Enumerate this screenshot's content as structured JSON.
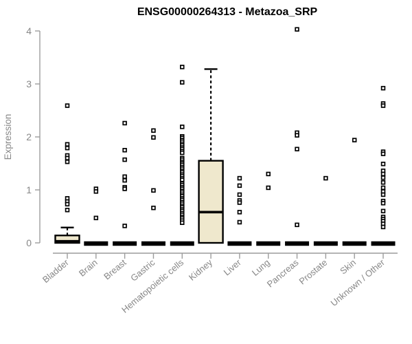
{
  "colors": {
    "box_fill": "#EFE8CD",
    "stroke": "#000000",
    "axis": "#9C9C9C",
    "tick_label": "#878787",
    "title": "#000000",
    "background": "#FFFFFF"
  },
  "chart_data": {
    "type": "boxplot",
    "title": "ENSG00000264313 - Metazoa_SRP",
    "ylabel": "Expression",
    "xlabel": "",
    "ylim": [
      0,
      4
    ],
    "yticks": [
      0,
      1,
      2,
      3,
      4
    ],
    "grid": false,
    "legend": false,
    "categories": [
      "Bladder",
      "Brain",
      "Breast",
      "Gastric",
      "Hematopoietic cells",
      "Kidney",
      "Liver",
      "Lung",
      "Pancreas",
      "Prostate",
      "Skin",
      "Unknown / Other"
    ],
    "boxes": [
      {
        "category": "Bladder",
        "q1": 0,
        "median": 0.03,
        "q3": 0.14,
        "whisker_low": 0,
        "whisker_high": 0.29,
        "outliers": [
          2.59,
          1.86,
          1.79,
          1.65,
          1.6,
          1.53,
          0.84,
          0.78,
          0.73,
          0.62
        ]
      },
      {
        "category": "Brain",
        "q1": 0,
        "median": 0,
        "q3": 0,
        "whisker_low": 0,
        "whisker_high": 0,
        "outliers": [
          1.02,
          0.97,
          0.47
        ]
      },
      {
        "category": "Breast",
        "q1": 0,
        "median": 0,
        "q3": 0,
        "whisker_low": 0,
        "whisker_high": 0,
        "outliers": [
          2.26,
          1.75,
          1.57,
          1.25,
          1.18,
          1.05,
          1.02,
          0.32
        ]
      },
      {
        "category": "Gastric",
        "q1": 0,
        "median": 0,
        "q3": 0,
        "whisker_low": 0,
        "whisker_high": 0,
        "outliers": [
          2.12,
          1.99,
          0.99,
          0.66
        ]
      },
      {
        "category": "Hematopoietic cells",
        "q1": 0,
        "median": 0,
        "q3": 0,
        "whisker_low": 0,
        "whisker_high": 0,
        "outliers": [
          3.32,
          3.03,
          2.19,
          2.01,
          1.98,
          1.94,
          1.91,
          1.87,
          1.84,
          1.8,
          1.77,
          1.73,
          1.7,
          1.6,
          1.57,
          1.53,
          1.5,
          1.47,
          1.43,
          1.4,
          1.36,
          1.33,
          1.29,
          1.26,
          1.22,
          1.19,
          1.12,
          1.09,
          1.05,
          1.02,
          0.98,
          0.95,
          0.91,
          0.88,
          0.84,
          0.81,
          0.77,
          0.74,
          0.7,
          0.67,
          0.63,
          0.6,
          0.56,
          0.53,
          0.49,
          0.46,
          0.42,
          0.38
        ]
      },
      {
        "category": "Kidney",
        "q1": 0,
        "median": 0.58,
        "q3": 1.55,
        "whisker_low": 0,
        "whisker_high": 3.28,
        "outliers": []
      },
      {
        "category": "Liver",
        "q1": 0,
        "median": 0,
        "q3": 0,
        "whisker_low": 0,
        "whisker_high": 0,
        "outliers": [
          1.22,
          1.08,
          0.91,
          0.8,
          0.76,
          0.58,
          0.39
        ]
      },
      {
        "category": "Lung",
        "q1": 0,
        "median": 0,
        "q3": 0,
        "whisker_low": 0,
        "whisker_high": 0,
        "outliers": [
          1.3,
          1.04
        ]
      },
      {
        "category": "Pancreas",
        "q1": 0,
        "median": 0,
        "q3": 0,
        "whisker_low": 0,
        "whisker_high": 0,
        "outliers": [
          4.03,
          2.08,
          2.03,
          1.77,
          0.34
        ]
      },
      {
        "category": "Prostate",
        "q1": 0,
        "median": 0,
        "q3": 0,
        "whisker_low": 0,
        "whisker_high": 0,
        "outliers": [
          1.22
        ]
      },
      {
        "category": "Skin",
        "q1": 0,
        "median": 0,
        "q3": 0,
        "whisker_low": 0,
        "whisker_high": 0,
        "outliers": [
          1.94
        ]
      },
      {
        "category": "Unknown / Other",
        "q1": 0,
        "median": 0,
        "q3": 0,
        "whisker_low": 0,
        "whisker_high": 0,
        "outliers": [
          2.92,
          2.63,
          2.59,
          1.72,
          1.68,
          1.49,
          1.36,
          1.3,
          1.23,
          1.14,
          1.04,
          0.97,
          0.91,
          0.79,
          0.75,
          0.6,
          0.49,
          0.45,
          0.41,
          0.36,
          0.3
        ]
      }
    ]
  }
}
